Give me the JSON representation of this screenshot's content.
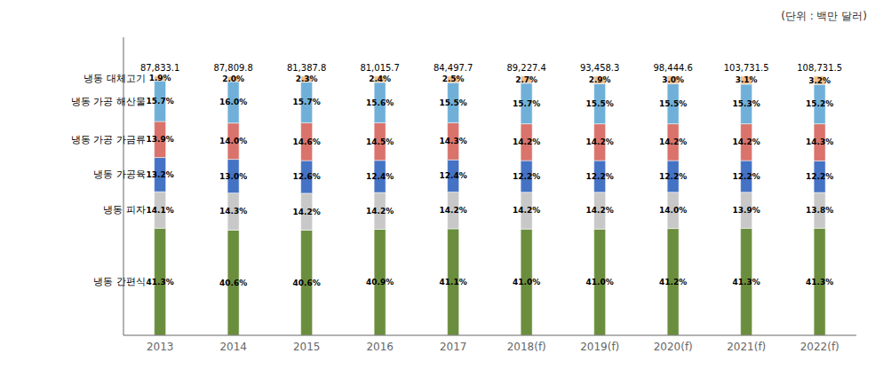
{
  "chart_data": {
    "type": "bar",
    "stacked": true,
    "data_labels": true,
    "grid": false,
    "tick_labels": "x",
    "annotations": [
      "(단위 : 백만 달러)"
    ],
    "categories": [
      "2013",
      "2014",
      "2015",
      "2016",
      "2017",
      "2018(f)",
      "2019(f)",
      "2020(f)",
      "2021(f)",
      "2022(f)"
    ],
    "ylim": [
      0,
      115
    ],
    "yticks": [],
    "totals": [
      87833.1,
      87809.8,
      81387.8,
      81015.7,
      84497.7,
      89227.4,
      93458.3,
      98444.6,
      103731.5,
      108731.5
    ],
    "total_labels": [
      "87,833.1",
      "87,809.8",
      "81,387.8",
      "81,015.7",
      "84,497.7",
      "89,227.4",
      "93,458.3",
      "98,444.6",
      "103,731.5",
      "108,731.5"
    ],
    "series": [
      {
        "name": "냉동 간편식",
        "color": "#6b8e3e",
        "values": [
          41.3,
          40.6,
          40.6,
          40.9,
          41.1,
          41.0,
          41.0,
          41.2,
          41.3,
          41.3
        ],
        "value_labels": [
          "41.3%",
          "40.6%",
          "40.6%",
          "40.9%",
          "41.1%",
          "41.0%",
          "41.0%",
          "41.2%",
          "41.3%",
          "41.3%"
        ]
      },
      {
        "name": "냉동 피자",
        "color": "#c8c8c8",
        "values": [
          14.1,
          14.3,
          14.2,
          14.2,
          14.2,
          14.2,
          14.2,
          14.0,
          13.9,
          13.8
        ],
        "value_labels": [
          "14.1%",
          "14.3%",
          "14.2%",
          "14.2%",
          "14.2%",
          "14.2%",
          "14.2%",
          "14.0%",
          "13.9%",
          "13.8%"
        ]
      },
      {
        "name": "냉동 가공육",
        "color": "#4472c4",
        "values": [
          13.2,
          13.0,
          12.6,
          12.4,
          12.4,
          12.2,
          12.2,
          12.2,
          12.2,
          12.2
        ],
        "value_labels": [
          "13.2%",
          "13.0%",
          "12.6%",
          "12.4%",
          "12.4%",
          "12.2%",
          "12.2%",
          "12.2%",
          "12.2%",
          "12.2%"
        ]
      },
      {
        "name": "냉동 가공 가금류",
        "color": "#d9736b",
        "values": [
          13.9,
          14.0,
          14.6,
          14.5,
          14.3,
          14.2,
          14.2,
          14.2,
          14.2,
          14.3
        ],
        "value_labels": [
          "13.9%",
          "14.0%",
          "14.6%",
          "14.5%",
          "14.3%",
          "14.2%",
          "14.2%",
          "14.2%",
          "14.2%",
          "14.3%"
        ]
      },
      {
        "name": "냉동 가공 해산물",
        "color": "#70b0d8",
        "values": [
          15.7,
          16.0,
          15.7,
          15.6,
          15.5,
          15.7,
          15.5,
          15.5,
          15.3,
          15.2
        ],
        "value_labels": [
          "15.7%",
          "16.0%",
          "15.7%",
          "15.6%",
          "15.5%",
          "15.7%",
          "15.5%",
          "15.5%",
          "15.3%",
          "15.2%"
        ]
      },
      {
        "name": "냉동 대체고기",
        "color": "#f4c08a",
        "values": [
          1.9,
          2.0,
          2.3,
          2.4,
          2.5,
          2.7,
          2.9,
          3.0,
          3.1,
          3.2
        ],
        "value_labels": [
          "1.9%",
          "2.0%",
          "2.3%",
          "2.4%",
          "2.5%",
          "2.7%",
          "2.9%",
          "3.0%",
          "3.1%",
          "3.2%"
        ]
      }
    ]
  }
}
